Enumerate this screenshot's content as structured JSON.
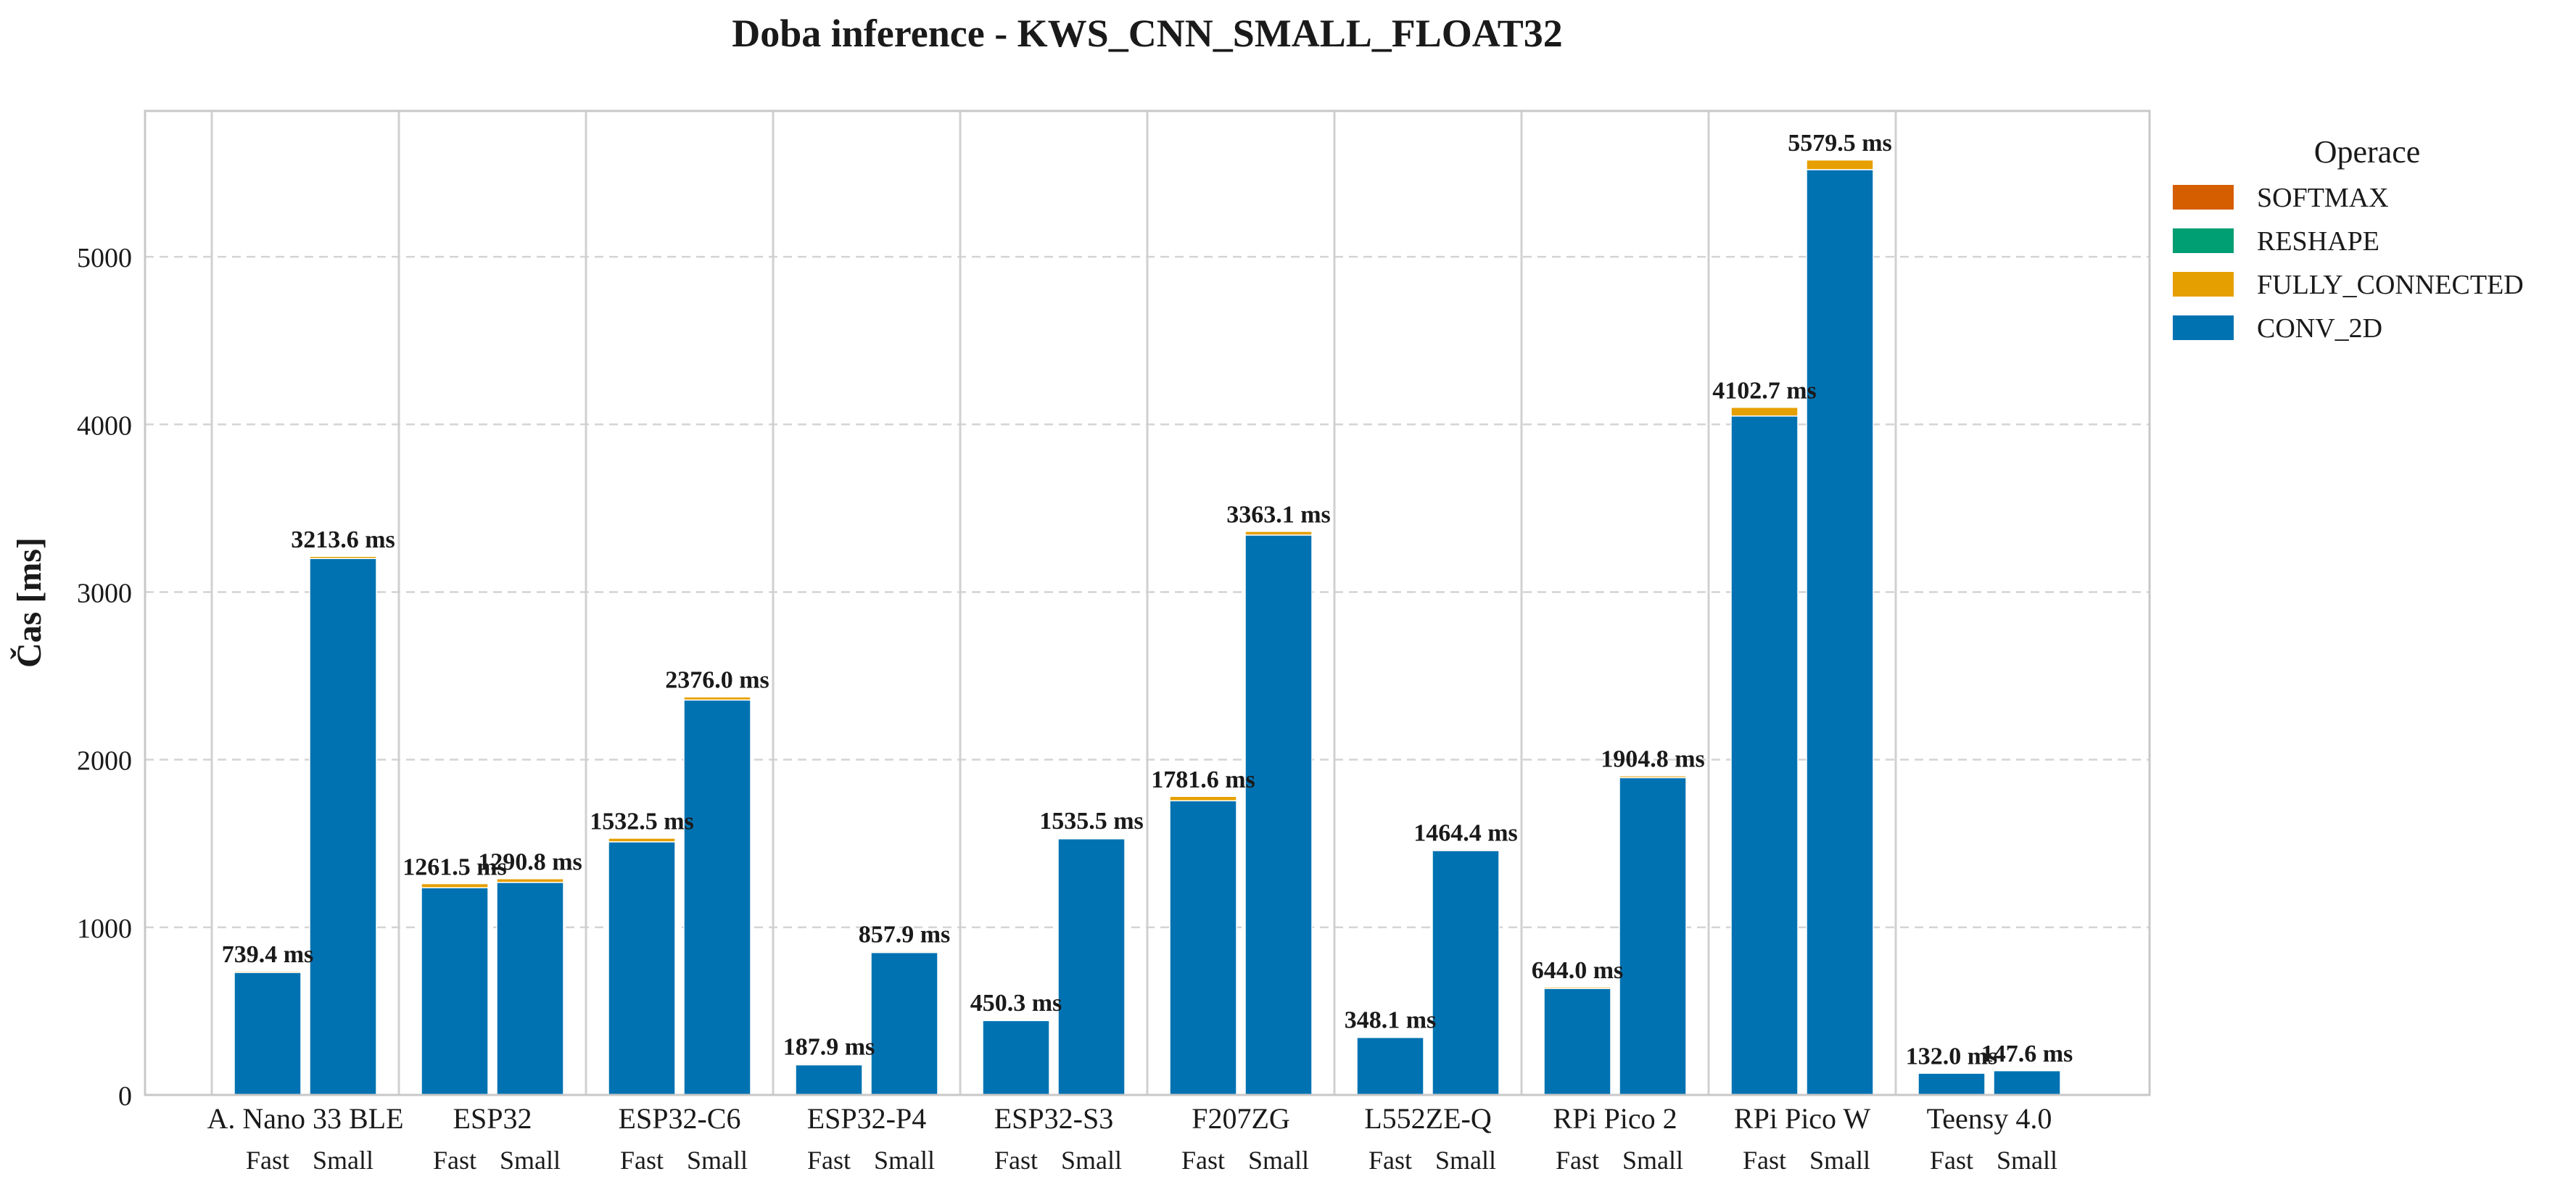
{
  "chart_data": {
    "type": "bar",
    "stacked": true,
    "title": "Doba inference - KWS_CNN_SMALL_FLOAT32",
    "xlabel": "",
    "ylabel": "Čas [ms]",
    "ylim": [
      0,
      5870
    ],
    "yticks": [
      0,
      1000,
      2000,
      3000,
      4000,
      5000
    ],
    "grid": "horizontal dashed",
    "legend": {
      "title": "Operace",
      "placement": "outside right",
      "entries": [
        "SOFTMAX",
        "RESHAPE",
        "FULLY_CONNECTED",
        "CONV_2D"
      ]
    },
    "colors": {
      "SOFTMAX": "#d55e00",
      "RESHAPE": "#009e73",
      "FULLY_CONNECTED": "#e69f00",
      "CONV_2D": "#0072b2"
    },
    "groups": [
      "A. Nano 33 BLE",
      "ESP32",
      "ESP32-C6",
      "ESP32-P4",
      "ESP32-S3",
      "F207ZG",
      "L552ZE-Q",
      "RPi Pico 2",
      "RPi Pico W",
      "Teensy 4.0"
    ],
    "sublabels": [
      "Fast",
      "Small"
    ],
    "series": [
      {
        "name": "CONV_2D",
        "values": [
          [
            731,
            3200
          ],
          [
            1236,
            1268
          ],
          [
            1510,
            2356
          ],
          [
            180,
            850
          ],
          [
            444,
            1528
          ],
          [
            1755,
            3340
          ],
          [
            343,
            1458
          ],
          [
            635,
            1893
          ],
          [
            4050,
            5520
          ],
          [
            130,
            145
          ]
        ]
      },
      {
        "name": "FULLY_CONNECTED",
        "values": [
          [
            8,
            13
          ],
          [
            25,
            22
          ],
          [
            22,
            19
          ],
          [
            7,
            7
          ],
          [
            6,
            7
          ],
          [
            26,
            22
          ],
          [
            5,
            6
          ],
          [
            9,
            11
          ],
          [
            52,
            58
          ],
          [
            2,
            2
          ]
        ]
      },
      {
        "name": "RESHAPE",
        "values": [
          [
            0,
            0
          ],
          [
            0,
            0
          ],
          [
            0,
            0
          ],
          [
            0,
            0
          ],
          [
            0,
            0
          ],
          [
            0,
            0
          ],
          [
            0,
            0
          ],
          [
            0,
            0
          ],
          [
            0,
            0
          ],
          [
            0,
            0
          ]
        ]
      },
      {
        "name": "SOFTMAX",
        "values": [
          [
            0.4,
            0.6
          ],
          [
            0.5,
            0.8
          ],
          [
            0.5,
            1.0
          ],
          [
            0.9,
            0.9
          ],
          [
            0.3,
            0.5
          ],
          [
            0.6,
            1.1
          ],
          [
            0.1,
            0.4
          ],
          [
            0,
            0.8
          ],
          [
            0.7,
            1.5
          ],
          [
            0,
            0.6
          ]
        ]
      }
    ],
    "totals": [
      [
        739.4,
        3213.6
      ],
      [
        1261.5,
        1290.8
      ],
      [
        1532.5,
        2376.0
      ],
      [
        187.9,
        857.9
      ],
      [
        450.3,
        1535.5
      ],
      [
        1781.6,
        3363.1
      ],
      [
        348.1,
        1464.4
      ],
      [
        644.0,
        1904.8
      ],
      [
        4102.7,
        5579.5
      ],
      [
        132.0,
        147.6
      ]
    ],
    "total_labels": [
      [
        "739.4 ms",
        "3213.6 ms"
      ],
      [
        "1261.5 ms",
        "1290.8 ms"
      ],
      [
        "1532.5 ms",
        "2376.0 ms"
      ],
      [
        "187.9 ms",
        "857.9 ms"
      ],
      [
        "450.3 ms",
        "1535.5 ms"
      ],
      [
        "1781.6 ms",
        "3363.1 ms"
      ],
      [
        "348.1 ms",
        "1464.4 ms"
      ],
      [
        "644.0 ms",
        "1904.8 ms"
      ],
      [
        "4102.7 ms",
        "5579.5 ms"
      ],
      [
        "132.0 ms",
        "147.6 ms"
      ]
    ]
  }
}
